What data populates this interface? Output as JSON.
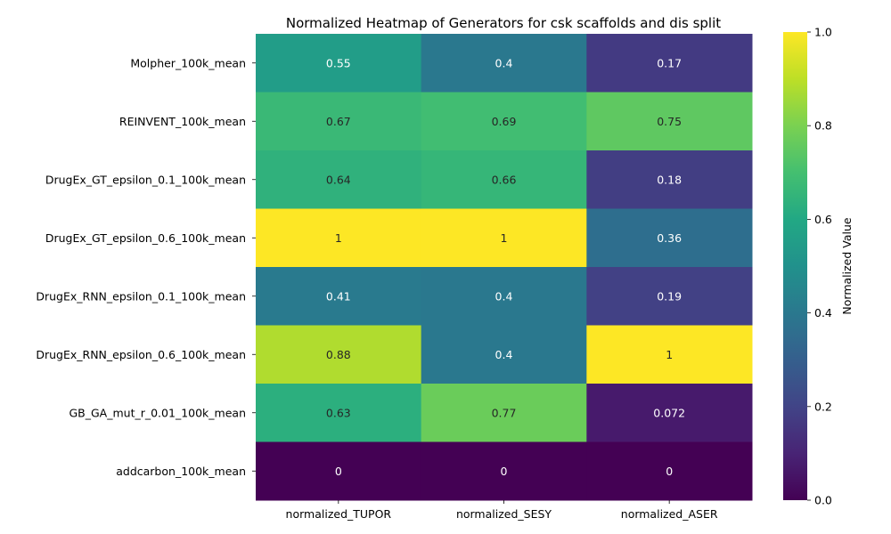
{
  "chart_data": {
    "type": "heatmap",
    "title": "Normalized Heatmap of Generators for csk scaffolds and dis split",
    "xlabel": "",
    "ylabel": "",
    "columns": [
      "normalized_TUPOR",
      "normalized_SESY",
      "normalized_ASER"
    ],
    "rows": [
      "Molpher_100k_mean",
      "REINVENT_100k_mean",
      "DrugEx_GT_epsilon_0.1_100k_mean",
      "DrugEx_GT_epsilon_0.6_100k_mean",
      "DrugEx_RNN_epsilon_0.1_100k_mean",
      "DrugEx_RNN_epsilon_0.6_100k_mean",
      "GB_GA_mut_r_0.01_100k_mean",
      "addcarbon_100k_mean"
    ],
    "values": [
      [
        0.55,
        0.4,
        0.17
      ],
      [
        0.67,
        0.69,
        0.75
      ],
      [
        0.64,
        0.66,
        0.18
      ],
      [
        1,
        1,
        0.36
      ],
      [
        0.41,
        0.4,
        0.19
      ],
      [
        0.88,
        0.4,
        1
      ],
      [
        0.63,
        0.77,
        0.072
      ],
      [
        0,
        0,
        0
      ]
    ],
    "colormap": "viridis",
    "vmin": 0,
    "vmax": 1,
    "colorbar": {
      "label": "Normalized Value",
      "ticks": [
        0.0,
        0.2,
        0.4,
        0.6,
        0.8,
        1.0
      ],
      "tick_labels": [
        "0.0",
        "0.2",
        "0.4",
        "0.6",
        "0.8",
        "1.0"
      ]
    }
  }
}
